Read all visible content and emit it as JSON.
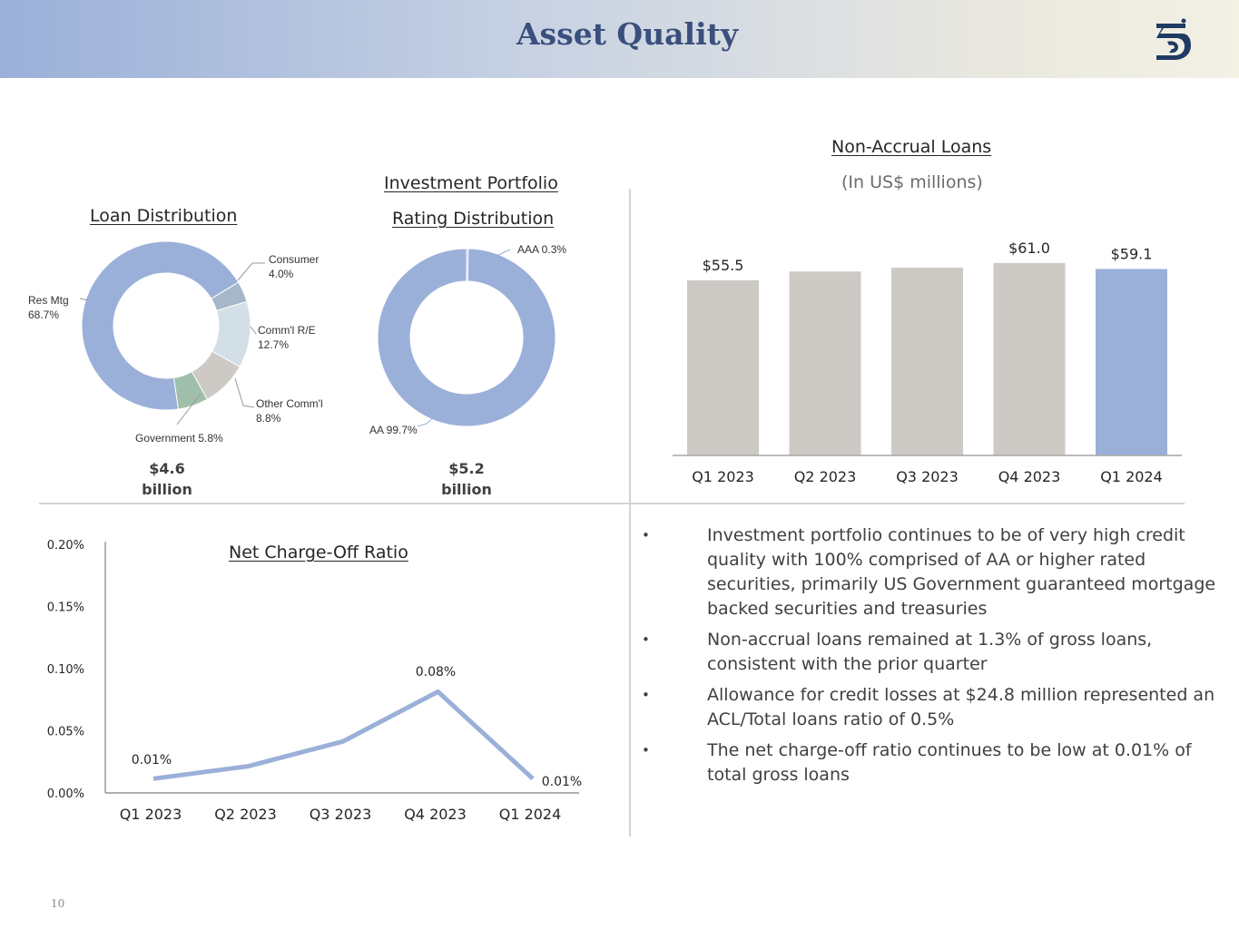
{
  "header": {
    "title": "Asset Quality",
    "logo_icon": "bank-logo-icon"
  },
  "loan_distribution": {
    "title": "Loan Distribution",
    "total_amount": "$4.6",
    "total_unit": "billion",
    "labels": {
      "res_mtg": {
        "name": "Res Mtg",
        "pct": "68.7%"
      },
      "consumer": {
        "name": "Consumer",
        "pct": "4.0%"
      },
      "comm_re": {
        "name": "Comm'l R/E",
        "pct": "12.7%"
      },
      "other_comm": {
        "name": "Other Comm'l",
        "pct": "8.8%"
      },
      "government": {
        "text": "Government 5.8%"
      }
    }
  },
  "investment_portfolio": {
    "title_line1": "Investment Portfolio ",
    "title_line2": "Rating Distribution",
    "total_amount": "$5.2",
    "total_unit": "billion",
    "labels": {
      "aaa": "AAA 0.3%",
      "aa": "AA 99.7%"
    }
  },
  "non_accrual": {
    "title": "Non-Accrual Loans",
    "subtitle": "(In US$ millions)"
  },
  "net_charge_off": {
    "title": "Net Charge-Off Ratio"
  },
  "bullets": [
    "Investment portfolio continues to be of very high credit quality with 100% comprised of AA or higher rated securities, primarily US Government guaranteed mortgage backed securities and treasuries",
    "Non-accrual loans remained at 1.3% of gross loans, consistent with the prior quarter",
    "Allowance for credit losses at $24.8 million represented an ACL/Total loans ratio of 0.5%",
    "The net charge-off ratio continues to be low at 0.01% of total gross loans"
  ],
  "bullet_symbol": "•",
  "page_number": "10",
  "colors": {
    "blue": "#9bb0d9",
    "gray_bar": "#cdcac5",
    "navy": "#1f3b63"
  },
  "chart_data": [
    {
      "type": "pie",
      "title": "Loan Distribution",
      "slices": [
        {
          "label": "Res Mtg",
          "value": 68.7,
          "color": "#9bb0d9"
        },
        {
          "label": "Consumer",
          "value": 4.0,
          "color": "#a5b7c9"
        },
        {
          "label": "Comm'l R/E",
          "value": 12.7,
          "color": "#d3dfe6"
        },
        {
          "label": "Other Comm'l",
          "value": 8.8,
          "color": "#cdcac5"
        },
        {
          "label": "Government",
          "value": 5.8,
          "color": "#9fbfab"
        }
      ]
    },
    {
      "type": "pie",
      "title": "Investment Portfolio Rating Distribution",
      "slices": [
        {
          "label": "AAA",
          "value": 0.3,
          "color": "#9bb0d9"
        },
        {
          "label": "AA",
          "value": 99.7,
          "color": "#9bb0d9"
        }
      ]
    },
    {
      "type": "bar",
      "title": "Non-Accrual Loans",
      "ylabel": "In US$ millions",
      "categories": [
        "Q1 2023",
        "Q2 2023",
        "Q3 2023",
        "Q4 2023",
        "Q1 2024"
      ],
      "values": [
        55.5,
        58.3,
        59.5,
        61.0,
        59.1
      ],
      "data_labels": [
        "$55.5",
        "",
        "",
        "$61.0",
        "$59.1"
      ],
      "colors": [
        "#cdcac5",
        "#cdcac5",
        "#cdcac5",
        "#cdcac5",
        "#9bb0d9"
      ],
      "ylim": [
        0,
        62.4
      ]
    },
    {
      "type": "line",
      "title": "Net Charge-Off Ratio",
      "categories": [
        "Q1 2023",
        "Q2 2023",
        "Q3 2023",
        "Q4 2023",
        "Q1 2024"
      ],
      "values": [
        0.01,
        0.02,
        0.04,
        0.08,
        0.01
      ],
      "data_labels": [
        "0.01%",
        "",
        "",
        "0.08%",
        "0.01%"
      ],
      "yticks": [
        "0.00%",
        "0.05%",
        "0.10%",
        "0.15%",
        "0.20%"
      ],
      "ylim": [
        0,
        0.2
      ],
      "color": "#9bb0d9"
    }
  ]
}
